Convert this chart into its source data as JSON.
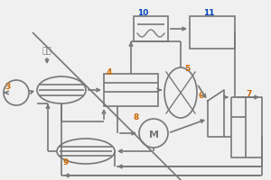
{
  "bg": "#f0f0f0",
  "lc": "#777777",
  "orange": "#cc6600",
  "blue": "#0044bb",
  "lw": 1.2,
  "fs_label": 6.5,
  "fs_text": 6.5
}
